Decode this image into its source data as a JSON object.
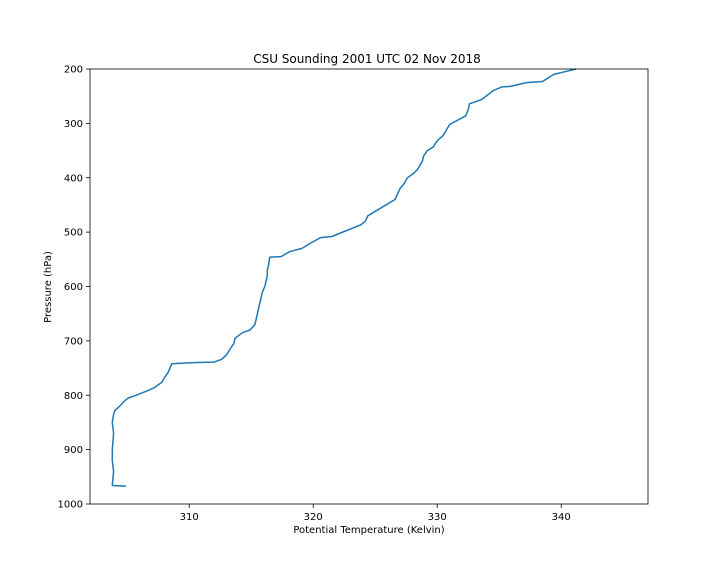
{
  "chart_data": {
    "type": "line",
    "title": "CSU Sounding 2001 UTC 02 Nov 2018",
    "xlabel": "Potential Temperature (Kelvin)",
    "ylabel": "Pressure (hPa)",
    "xlim": [
      302,
      347
    ],
    "ylim": [
      1000,
      200
    ],
    "y_inverted": true,
    "grid": false,
    "x_ticks": [
      310,
      320,
      330,
      340
    ],
    "y_ticks": [
      200,
      300,
      400,
      500,
      600,
      700,
      800,
      900,
      1000
    ],
    "series": [
      {
        "color": "#1f77b4",
        "x": [
          304.9,
          303.8,
          303.9,
          303.8,
          303.8,
          303.9,
          303.8,
          303.9,
          304.0,
          304.4,
          304.8,
          305.1,
          305.7,
          306.6,
          307.2,
          307.8,
          308.0,
          308.3,
          308.6,
          310.3,
          312.0,
          312.6,
          313.0,
          313.3,
          313.6,
          313.7,
          314.3,
          314.9,
          315.3,
          315.4,
          315.5,
          315.7,
          315.8,
          315.9,
          316.1,
          316.2,
          316.3,
          316.3,
          316.4,
          316.5,
          317.4,
          318.1,
          319.1,
          319.8,
          320.6,
          321.5,
          322.7,
          323.8,
          324.2,
          324.4,
          325.5,
          326.6,
          326.8,
          327.0,
          327.3,
          327.6,
          328.1,
          328.4,
          328.8,
          328.9,
          329.2,
          329.7,
          329.9,
          330.1,
          330.5,
          331.0,
          331.5,
          332.3,
          332.5,
          332.6,
          333.6,
          334.5,
          334.8,
          335.2,
          335.9,
          337.2,
          338.5,
          339.4,
          340.3,
          341.2
        ],
        "y": [
          967,
          966,
          940,
          920,
          900,
          870,
          850,
          835,
          828,
          820,
          810,
          805,
          800,
          792,
          786,
          776,
          768,
          758,
          742,
          740,
          739,
          734,
          726,
          715,
          705,
          695,
          685,
          680,
          670,
          660,
          650,
          630,
          620,
          610,
          600,
          590,
          580,
          570,
          560,
          546,
          545,
          536,
          530,
          520,
          510,
          508,
          497,
          487,
          480,
          470,
          455,
          440,
          430,
          420,
          412,
          400,
          392,
          385,
          370,
          360,
          350,
          343,
          335,
          330,
          322,
          302,
          296,
          286,
          275,
          264,
          256,
          240,
          237,
          233,
          232,
          225,
          223,
          210,
          205,
          200
        ]
      }
    ]
  }
}
